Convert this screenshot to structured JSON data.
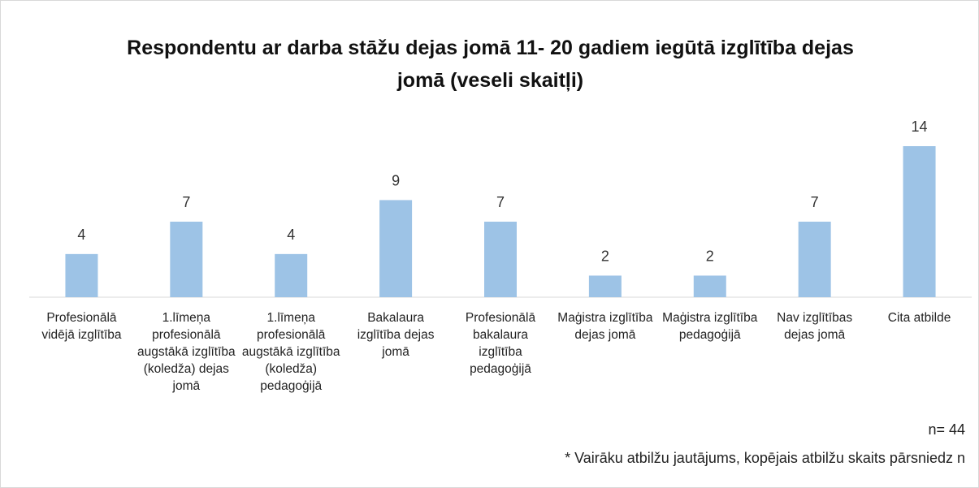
{
  "chart_data": {
    "type": "bar",
    "title": "Respondentu ar darba stāžu dejas jomā 11- 20 gadiem iegūtā izglītība dejas jomā (veseli skaitļi)",
    "categories": [
      "Profesionālā vidējā izglītība",
      "1.līmeņa profesionālā augstākā izglītība (koledža) dejas jomā",
      "1.līmeņa profesionālā augstākā izglītība (koledža) pedagoģijā",
      "Bakalaura izglītība dejas jomā",
      "Profesionālā bakalaura izglītība pedagoģijā",
      "Maģistra izglītība dejas jomā",
      "Maģistra izglītība pedagoģijā",
      "Nav izglītības dejas jomā",
      "Cita atbilde"
    ],
    "values": [
      4,
      7,
      4,
      9,
      7,
      2,
      2,
      7,
      14
    ],
    "color": "#9dc3e6",
    "annotations": [
      "n= 44",
      "* Vairāku atbilžu jautājums, kopējais atbilžu skaits pārsniedz n"
    ]
  }
}
